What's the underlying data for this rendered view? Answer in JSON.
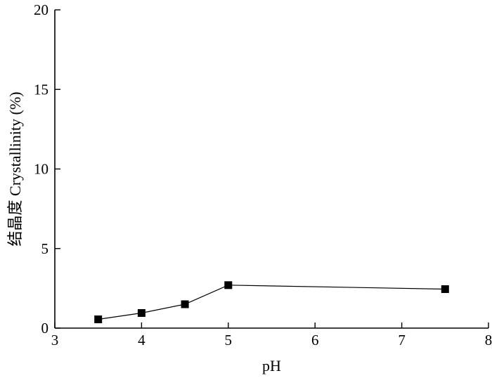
{
  "chart_data": {
    "type": "line",
    "title": "",
    "xlabel": "pH",
    "ylabel": "结晶度 Crystallinity (%)",
    "xlim": [
      3,
      8
    ],
    "ylim": [
      0,
      20
    ],
    "x_ticks": [
      3,
      4,
      5,
      6,
      7,
      8
    ],
    "y_ticks": [
      0,
      5,
      10,
      15,
      20
    ],
    "grid": false,
    "marker": "square",
    "color": "#000000",
    "series": [
      {
        "x": [
          3.5,
          4.0,
          4.5,
          5.0,
          7.5
        ],
        "y": [
          0.55,
          0.95,
          1.5,
          2.7,
          2.45
        ]
      }
    ]
  }
}
